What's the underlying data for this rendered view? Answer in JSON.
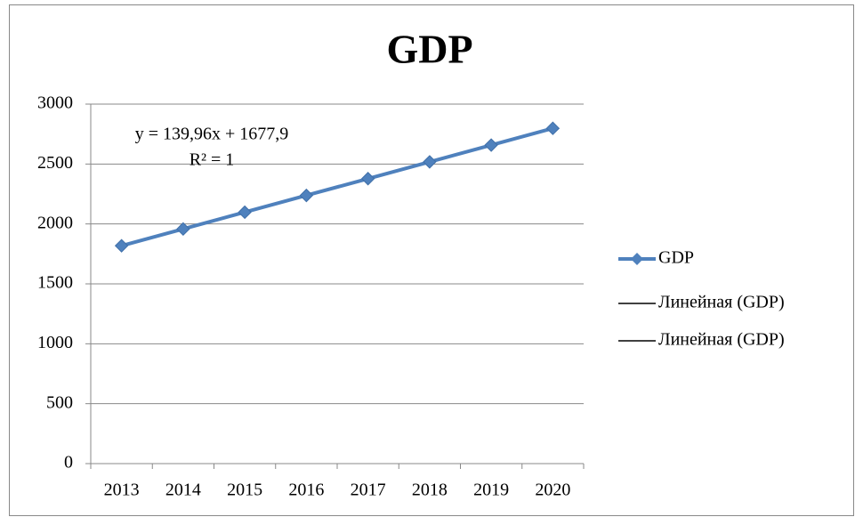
{
  "chart_data": {
    "type": "line",
    "title": "GDP",
    "categories": [
      "2013",
      "2014",
      "2015",
      "2016",
      "2017",
      "2018",
      "2019",
      "2020"
    ],
    "series": [
      {
        "name": "GDP",
        "color": "#4f81bd",
        "marker": "diamond",
        "values": [
          1818,
          1958,
          2098,
          2238,
          2378,
          2518,
          2658,
          2798
        ]
      },
      {
        "name": "Линейная (GDP)",
        "color": "#000000",
        "values": [
          1818,
          1958,
          2098,
          2238,
          2378,
          2518,
          2658,
          2798
        ]
      },
      {
        "name": "Линейная (GDP)",
        "color": "#000000",
        "values": [
          1818,
          1958,
          2098,
          2238,
          2378,
          2518,
          2658,
          2798
        ]
      }
    ],
    "annotations": [
      "y = 139,96x + 1677,9",
      "R² = 1"
    ],
    "ylim": [
      0,
      3000
    ],
    "yticks": [
      0,
      500,
      1000,
      1500,
      2000,
      2500,
      3000
    ],
    "grid": true,
    "legend": "right"
  }
}
